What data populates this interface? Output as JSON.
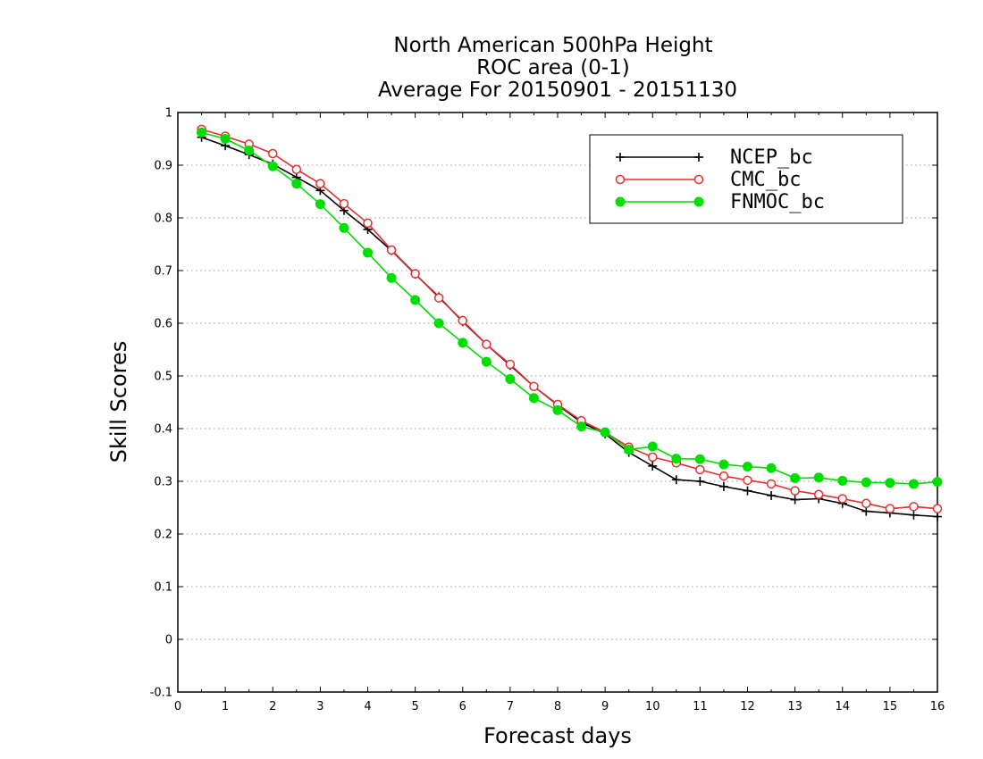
{
  "chart_data": {
    "type": "line",
    "title": [
      "North American 500hPa Height",
      "ROC area (0-1)",
      "Average For 20150901 - 20151130"
    ],
    "xlabel": "Forecast days",
    "ylabel": "Skill Scores",
    "xlim": [
      0,
      16
    ],
    "ylim": [
      -0.1,
      1
    ],
    "xticks": [
      "0",
      "1",
      "2",
      "3",
      "4",
      "5",
      "6",
      "7",
      "8",
      "9",
      "10",
      "11",
      "12",
      "13",
      "14",
      "15",
      "16"
    ],
    "yticks": [
      "-0.1",
      "0",
      "0.1",
      "0.2",
      "0.3",
      "0.4",
      "0.5",
      "0.6",
      "0.7",
      "0.8",
      "0.9",
      "1"
    ],
    "grid": "horizontal dotted",
    "legend_position": "top-right",
    "x": [
      0.5,
      1,
      1.5,
      2,
      2.5,
      3,
      3.5,
      4,
      4.5,
      5,
      5.5,
      6,
      6.5,
      7,
      7.5,
      8,
      8.5,
      9,
      9.5,
      10,
      10.5,
      11,
      11.5,
      12,
      12.5,
      13,
      13.5,
      14,
      14.5,
      15,
      15.5,
      16
    ],
    "series": [
      {
        "name": "NCEP_bc",
        "color": "#000000",
        "marker": "plus",
        "values": [
          0.953,
          0.937,
          0.92,
          0.902,
          0.877,
          0.852,
          0.814,
          0.778,
          0.738,
          0.693,
          0.65,
          0.603,
          0.56,
          0.52,
          0.48,
          0.445,
          0.412,
          0.39,
          0.355,
          0.329,
          0.303,
          0.3,
          0.29,
          0.282,
          0.273,
          0.265,
          0.267,
          0.258,
          0.243,
          0.24,
          0.236,
          0.233
        ]
      },
      {
        "name": "CMC_bc",
        "color": "#e62e2e",
        "marker": "open-circle",
        "values": [
          0.968,
          0.955,
          0.94,
          0.922,
          0.892,
          0.865,
          0.827,
          0.79,
          0.739,
          0.694,
          0.648,
          0.605,
          0.56,
          0.522,
          0.48,
          0.446,
          0.415,
          0.393,
          0.365,
          0.346,
          0.335,
          0.322,
          0.31,
          0.302,
          0.295,
          0.282,
          0.275,
          0.267,
          0.258,
          0.248,
          0.252,
          0.248
        ]
      },
      {
        "name": "FNMOC_bc",
        "color": "#00dd00",
        "marker": "filled-circle",
        "values": [
          0.962,
          0.95,
          0.928,
          0.898,
          0.865,
          0.826,
          0.781,
          0.734,
          0.686,
          0.644,
          0.6,
          0.563,
          0.527,
          0.494,
          0.458,
          0.435,
          0.404,
          0.393,
          0.36,
          0.366,
          0.343,
          0.342,
          0.332,
          0.328,
          0.325,
          0.306,
          0.307,
          0.301,
          0.298,
          0.297,
          0.295,
          0.299
        ]
      }
    ]
  }
}
